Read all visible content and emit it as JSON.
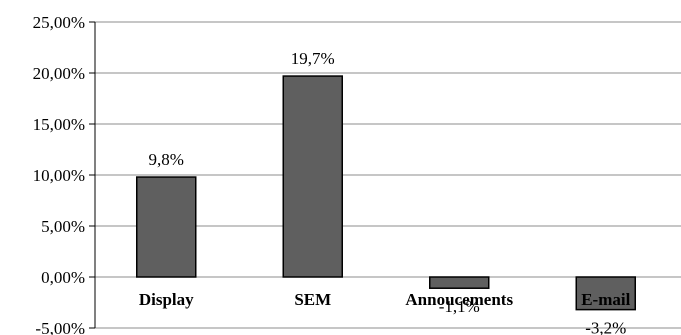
{
  "chart_data": {
    "type": "bar",
    "categories": [
      "Display",
      "SEM",
      "Annoucements",
      "E-mail"
    ],
    "values": [
      9.8,
      19.7,
      -1.1,
      -3.2
    ],
    "data_labels": [
      "9,8%",
      "19,7%",
      "-1,1%",
      "-3,2%"
    ],
    "ylim": [
      -5,
      25
    ],
    "yticks": [
      25,
      20,
      15,
      10,
      5,
      0,
      -5
    ],
    "ytick_labels": [
      "25,00%",
      "20,00%",
      "15,00%",
      "10,00%",
      "5,00%",
      "0,00%",
      "-5,00%"
    ],
    "grid": true,
    "legend": "none",
    "colors": {
      "bar_fill": "#5f5f5f",
      "bar_stroke": "#000000",
      "grid": "#8c8c8c",
      "axis": "#000000"
    }
  }
}
